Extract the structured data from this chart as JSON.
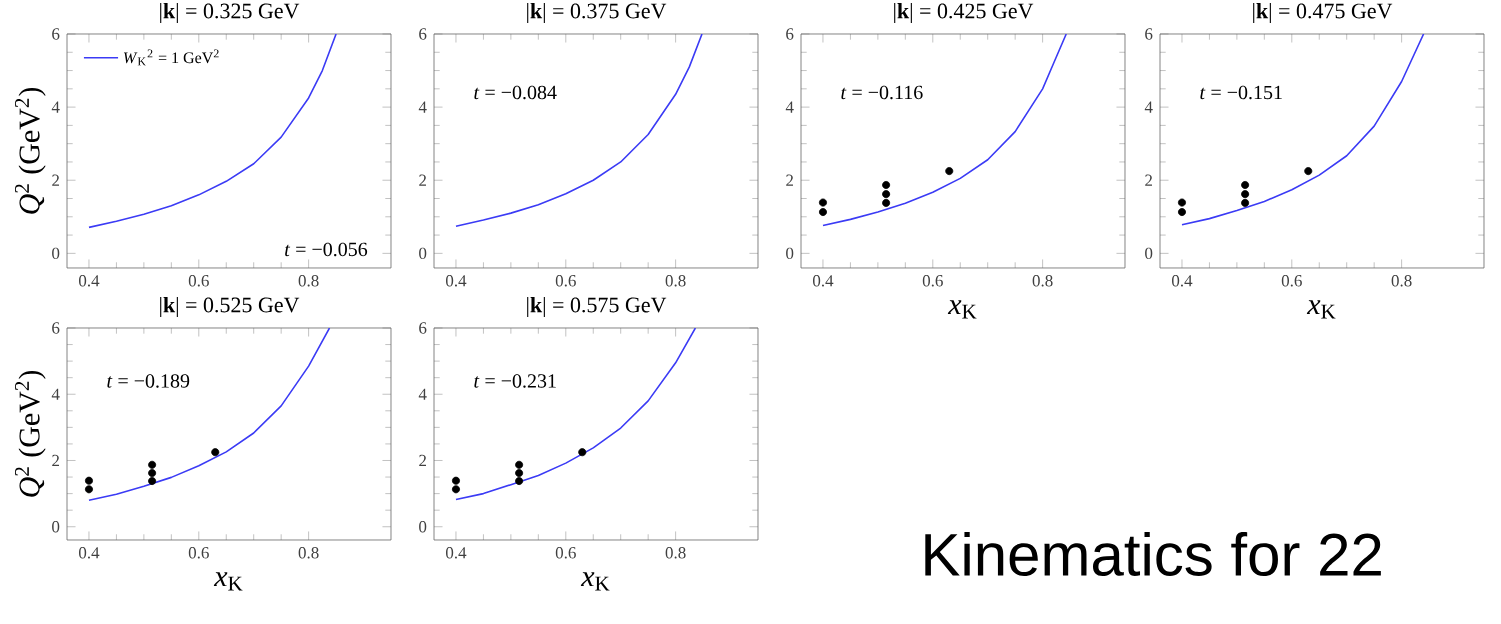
{
  "chart_data": [
    {
      "type": "line",
      "title": "|**k**| = 0.325 GeV",
      "ylabel": "*Q*$^{2}$ (GeV$^{2}$)",
      "xlim": [
        0.36,
        0.95
      ],
      "ylim": [
        -0.4,
        6
      ],
      "xticks": [
        0.4,
        0.6,
        0.8
      ],
      "yticks": [
        0,
        2,
        4,
        6
      ],
      "legend": "top left",
      "annotations": [
        "*t* = −0.056"
      ],
      "series": [
        {
          "name": "*W*$_{K}$$^{2}$ = 1 GeV$^{2}$",
          "color": "#3b3bf5",
          "x": [
            0.4,
            0.45,
            0.5,
            0.55,
            0.6,
            0.65,
            0.7,
            0.75,
            0.8,
            0.825,
            0.85
          ],
          "values": [
            0.71,
            0.88,
            1.07,
            1.3,
            1.6,
            1.97,
            2.45,
            3.18,
            4.25,
            5.0,
            6.0
          ]
        }
      ]
    },
    {
      "type": "line",
      "title": "|**k**| = 0.375 GeV",
      "xlim": [
        0.36,
        0.95
      ],
      "ylim": [
        -0.4,
        6
      ],
      "xticks": [
        0.4,
        0.6,
        0.8
      ],
      "yticks": [
        0,
        2,
        4,
        6
      ],
      "annotations": [
        "*t* = −0.084"
      ],
      "series": [
        {
          "color": "#3b3bf5",
          "x": [
            0.4,
            0.45,
            0.5,
            0.55,
            0.6,
            0.65,
            0.7,
            0.75,
            0.8,
            0.825,
            0.848
          ],
          "values": [
            0.74,
            0.91,
            1.1,
            1.33,
            1.63,
            2.0,
            2.5,
            3.25,
            4.35,
            5.1,
            6.0
          ]
        }
      ]
    },
    {
      "type": "line",
      "title": "|**k**| = 0.425 GeV",
      "xlabel": "*x*$_{K}$",
      "xlim": [
        0.36,
        0.95
      ],
      "ylim": [
        -0.4,
        6
      ],
      "xticks": [
        0.4,
        0.6,
        0.8
      ],
      "yticks": [
        0,
        2,
        4,
        6
      ],
      "annotations": [
        "*t* = −0.116"
      ],
      "series": [
        {
          "color": "#3b3bf5",
          "x": [
            0.4,
            0.45,
            0.5,
            0.55,
            0.6,
            0.65,
            0.7,
            0.75,
            0.8,
            0.82,
            0.843
          ],
          "values": [
            0.76,
            0.93,
            1.13,
            1.37,
            1.67,
            2.05,
            2.56,
            3.33,
            4.5,
            5.2,
            6.0
          ]
        },
        {
          "type": "scatter",
          "marker": "circle",
          "color": "#000000",
          "x": [
            0.4,
            0.4,
            0.515,
            0.515,
            0.515,
            0.63
          ],
          "values": [
            1.13,
            1.39,
            1.38,
            1.62,
            1.87,
            2.25
          ]
        }
      ]
    },
    {
      "type": "line",
      "title": "|**k**| = 0.475 GeV",
      "xlabel": "*x*$_{K}$",
      "xlim": [
        0.36,
        0.95
      ],
      "ylim": [
        -0.4,
        6
      ],
      "xticks": [
        0.4,
        0.6,
        0.8
      ],
      "yticks": [
        0,
        2,
        4,
        6
      ],
      "annotations": [
        "*t* = −0.151"
      ],
      "series": [
        {
          "color": "#3b3bf5",
          "x": [
            0.4,
            0.45,
            0.5,
            0.55,
            0.6,
            0.65,
            0.7,
            0.75,
            0.8,
            0.84
          ],
          "values": [
            0.78,
            0.95,
            1.17,
            1.42,
            1.74,
            2.14,
            2.67,
            3.48,
            4.7,
            6.0
          ]
        },
        {
          "type": "scatter",
          "marker": "circle",
          "color": "#000000",
          "x": [
            0.4,
            0.4,
            0.515,
            0.515,
            0.515,
            0.63
          ],
          "values": [
            1.13,
            1.39,
            1.38,
            1.62,
            1.87,
            2.25
          ]
        }
      ]
    },
    {
      "type": "line",
      "title": "|**k**| = 0.525 GeV",
      "xlabel": "*x*$_{K}$",
      "ylabel": "*Q*$^{2}$ (GeV$^{2}$)",
      "xlim": [
        0.36,
        0.95
      ],
      "ylim": [
        -0.4,
        6
      ],
      "xticks": [
        0.4,
        0.6,
        0.8
      ],
      "yticks": [
        0,
        2,
        4,
        6
      ],
      "annotations": [
        "*t* = −0.189"
      ],
      "series": [
        {
          "color": "#3b3bf5",
          "x": [
            0.4,
            0.45,
            0.5,
            0.55,
            0.6,
            0.65,
            0.7,
            0.75,
            0.8,
            0.838
          ],
          "values": [
            0.8,
            0.98,
            1.22,
            1.49,
            1.84,
            2.26,
            2.83,
            3.65,
            4.85,
            6.0
          ]
        },
        {
          "type": "scatter",
          "marker": "circle",
          "color": "#000000",
          "x": [
            0.4,
            0.4,
            0.515,
            0.515,
            0.515,
            0.63
          ],
          "values": [
            1.13,
            1.39,
            1.38,
            1.62,
            1.87,
            2.25
          ]
        }
      ]
    },
    {
      "type": "line",
      "title": "|**k**| = 0.575 GeV",
      "xlabel": "*x*$_{K}$",
      "xlim": [
        0.36,
        0.95
      ],
      "ylim": [
        -0.4,
        6
      ],
      "xticks": [
        0.4,
        0.6,
        0.8
      ],
      "yticks": [
        0,
        2,
        4,
        6
      ],
      "annotations": [
        "*t* = −0.231"
      ],
      "series": [
        {
          "color": "#3b3bf5",
          "x": [
            0.4,
            0.45,
            0.5,
            0.55,
            0.6,
            0.65,
            0.7,
            0.75,
            0.8,
            0.836
          ],
          "values": [
            0.82,
            1.0,
            1.27,
            1.55,
            1.92,
            2.38,
            2.98,
            3.8,
            4.95,
            6.0
          ]
        },
        {
          "type": "scatter",
          "marker": "circle",
          "color": "#000000",
          "x": [
            0.4,
            0.4,
            0.515,
            0.515,
            0.515,
            0.63
          ],
          "values": [
            1.13,
            1.39,
            1.38,
            1.62,
            1.87,
            2.25
          ]
        }
      ]
    },
    {
      "type": "other",
      "title": "Kinematics for 22"
    }
  ]
}
